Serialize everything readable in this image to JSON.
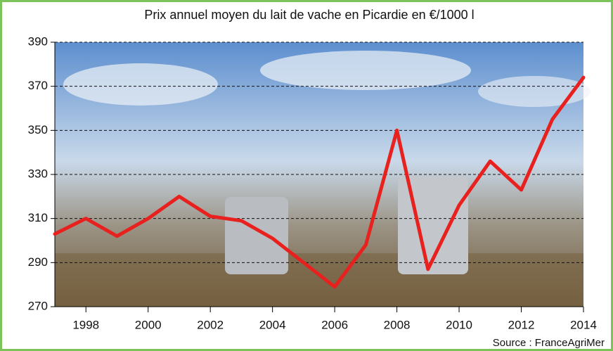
{
  "chart_data": {
    "type": "line",
    "title": "Prix annuel moyen du lait de vache en Picardie en €/1000 l",
    "source": "Source : FranceAgriMer",
    "x": [
      1997,
      1998,
      1999,
      2000,
      2001,
      2002,
      2003,
      2004,
      2005,
      2006,
      2007,
      2008,
      2009,
      2010,
      2011,
      2012,
      2013,
      2014
    ],
    "values": [
      303,
      310,
      302,
      310,
      320,
      311,
      309,
      301,
      290,
      279,
      298,
      350,
      287,
      316,
      336,
      323,
      355,
      374
    ],
    "color": "#e8201e",
    "xlim": [
      1997,
      2014
    ],
    "xticks": [
      1998,
      2000,
      2002,
      2004,
      2006,
      2008,
      2010,
      2012,
      2014
    ],
    "ylim": [
      270,
      390
    ],
    "yticks": [
      270,
      290,
      310,
      330,
      350,
      370,
      390
    ],
    "grid": true
  }
}
